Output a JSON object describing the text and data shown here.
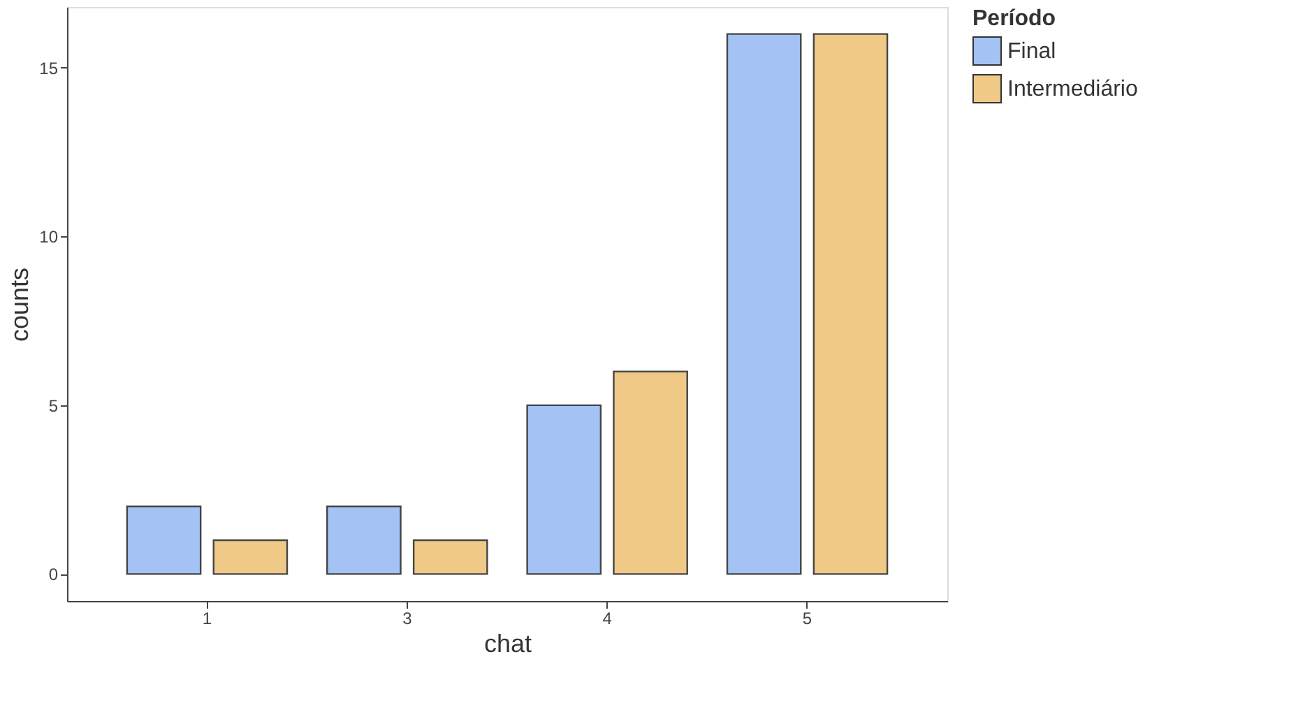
{
  "chart_data": {
    "type": "bar",
    "xlabel": "chat",
    "ylabel": "counts",
    "legend_title": "Período",
    "categories": [
      "1",
      "3",
      "4",
      "5"
    ],
    "series": [
      {
        "name": "Final",
        "color": "#a4c2f4",
        "values": [
          2,
          2,
          5,
          16
        ]
      },
      {
        "name": "Intermediário",
        "color": "#f0c987",
        "values": [
          1,
          1,
          6,
          16
        ]
      }
    ],
    "ylim": [
      -0.8,
      16.8
    ],
    "yticks": [
      0,
      5,
      10,
      15
    ],
    "grid": false,
    "legend": "right"
  }
}
